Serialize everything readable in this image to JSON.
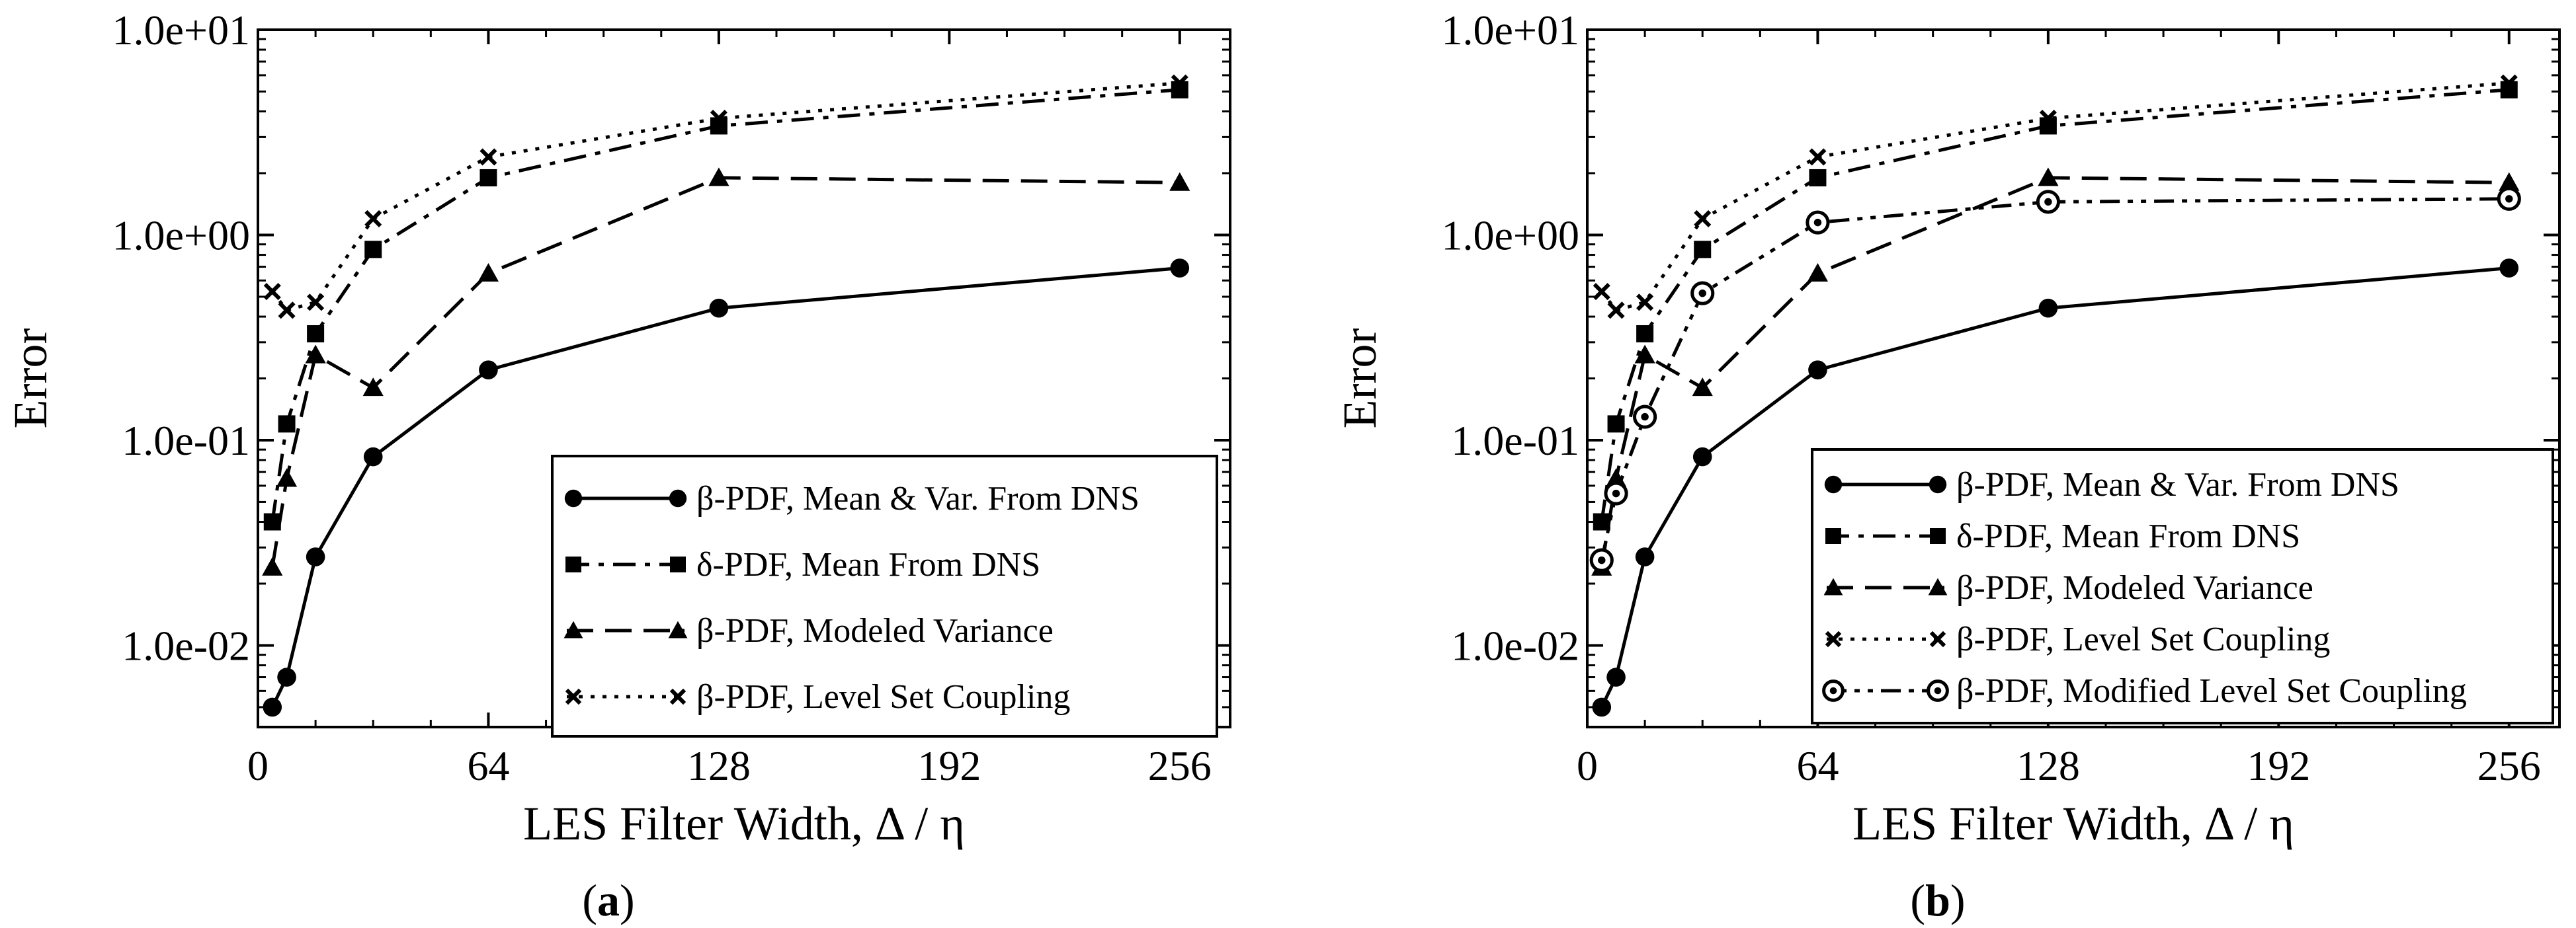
{
  "chart_data": [
    {
      "type": "line",
      "panel_label": "a",
      "xlabel": "LES Filter Width, Δ / η",
      "ylabel": "Error",
      "x_scale": "linear",
      "y_scale": "log",
      "xlim": [
        0,
        270
      ],
      "ylim": [
        0.004,
        10
      ],
      "xticks": [
        0,
        64,
        128,
        192,
        256
      ],
      "xtick_labels": [
        "0",
        "64",
        "128",
        "192",
        "256"
      ],
      "yticks": [
        0.01,
        0.1,
        1,
        10
      ],
      "ytick_labels": [
        "1.0e-02",
        "1.0e-01",
        "1.0e+00",
        "1.0e+01"
      ],
      "legend_position": "bottom-right",
      "series": [
        {
          "name": "β-PDF, Mean & Var. From DNS",
          "marker": "circle",
          "dash": "solid",
          "x": [
            4,
            8,
            16,
            32,
            64,
            128,
            256
          ],
          "y": [
            0.005,
            0.007,
            0.027,
            0.083,
            0.22,
            0.44,
            0.69
          ]
        },
        {
          "name": "δ-PDF, Mean From DNS",
          "marker": "square",
          "dash": "dashdot",
          "x": [
            4,
            8,
            16,
            32,
            64,
            128,
            256
          ],
          "y": [
            0.04,
            0.12,
            0.33,
            0.85,
            1.9,
            3.4,
            5.1
          ]
        },
        {
          "name": "β-PDF, Modeled Variance",
          "marker": "triangle",
          "dash": "dashed",
          "x": [
            4,
            8,
            16,
            32,
            64,
            128,
            256
          ],
          "y": [
            0.024,
            0.065,
            0.26,
            0.18,
            0.65,
            1.9,
            1.8
          ]
        },
        {
          "name": "β-PDF, Level Set Coupling",
          "marker": "x",
          "dash": "dotted",
          "x": [
            4,
            8,
            16,
            32,
            64,
            128,
            256
          ],
          "y": [
            0.53,
            0.43,
            0.47,
            1.2,
            2.4,
            3.7,
            5.5
          ]
        }
      ]
    },
    {
      "type": "line",
      "panel_label": "b",
      "xlabel": "LES Filter Width, Δ / η",
      "ylabel": "Error",
      "x_scale": "linear",
      "y_scale": "log",
      "xlim": [
        0,
        270
      ],
      "ylim": [
        0.004,
        10
      ],
      "xticks": [
        0,
        64,
        128,
        192,
        256
      ],
      "xtick_labels": [
        "0",
        "64",
        "128",
        "192",
        "256"
      ],
      "yticks": [
        0.01,
        0.1,
        1,
        10
      ],
      "ytick_labels": [
        "1.0e-02",
        "1.0e-01",
        "1.0e+00",
        "1.0e+01"
      ],
      "legend_position": "bottom-right",
      "series": [
        {
          "name": "β-PDF, Mean & Var. From DNS",
          "marker": "circle",
          "dash": "solid",
          "x": [
            4,
            8,
            16,
            32,
            64,
            128,
            256
          ],
          "y": [
            0.005,
            0.007,
            0.027,
            0.083,
            0.22,
            0.44,
            0.69
          ]
        },
        {
          "name": "δ-PDF, Mean From DNS",
          "marker": "square",
          "dash": "dashdot",
          "x": [
            4,
            8,
            16,
            32,
            64,
            128,
            256
          ],
          "y": [
            0.04,
            0.12,
            0.33,
            0.85,
            1.9,
            3.4,
            5.1
          ]
        },
        {
          "name": "β-PDF, Modeled Variance",
          "marker": "triangle",
          "dash": "dashed",
          "x": [
            4,
            8,
            16,
            32,
            64,
            128,
            256
          ],
          "y": [
            0.024,
            0.065,
            0.26,
            0.18,
            0.65,
            1.9,
            1.8
          ]
        },
        {
          "name": "β-PDF, Level Set Coupling",
          "marker": "x",
          "dash": "dotted",
          "x": [
            4,
            8,
            16,
            32,
            64,
            128,
            256
          ],
          "y": [
            0.53,
            0.43,
            0.47,
            1.2,
            2.4,
            3.7,
            5.5
          ]
        },
        {
          "name": "β-PDF, Modified Level Set Coupling",
          "marker": "circle-dot",
          "dash": "dashdotdot",
          "x": [
            4,
            8,
            16,
            32,
            64,
            128,
            256
          ],
          "y": [
            0.026,
            0.055,
            0.13,
            0.52,
            1.15,
            1.45,
            1.5
          ]
        }
      ]
    }
  ]
}
